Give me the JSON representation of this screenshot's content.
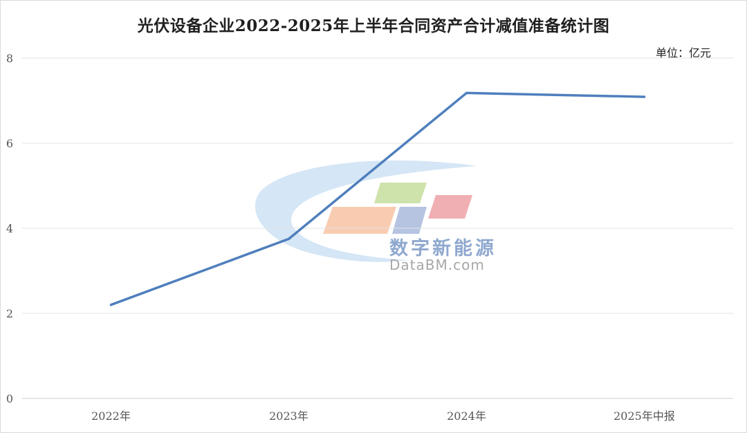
{
  "chart_data": {
    "type": "line",
    "title": "光伏设备企业2022-2025年上半年合同资产合计减值准备统计图",
    "unit_label": "单位：亿元",
    "categories": [
      "2022年",
      "2023年",
      "2024年",
      "2025年中报"
    ],
    "series": [
      {
        "values": [
          2.2,
          3.75,
          7.18,
          7.09
        ],
        "color": "#4f7fbd"
      }
    ],
    "ylim": [
      0,
      8
    ],
    "yticks": [
      0,
      2,
      4,
      6,
      8
    ],
    "grid": true,
    "legend": "none",
    "gridline_color": "#e3e3e3"
  },
  "watermark": {
    "cn": "数字新能源",
    "en": "DataBM.com",
    "colors": [
      "#c7ddf3",
      "#f8c6a8",
      "#c9dfa2",
      "#aebedf",
      "#eea6ab"
    ]
  }
}
